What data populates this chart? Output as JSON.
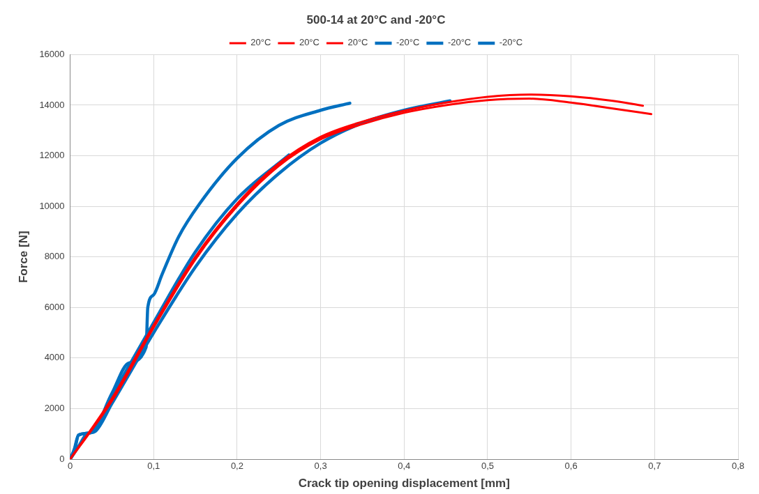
{
  "chart_data": {
    "type": "line",
    "title": "500-14 at 20°C and -20°C",
    "xlabel": "Crack tip opening displacement [mm]",
    "ylabel": "Force [N]",
    "xlim": [
      0,
      0.8
    ],
    "xticks": [
      0,
      {
        "value": 0.1,
        "label": "0,1"
      },
      {
        "value": 0.2,
        "label": "0,2"
      },
      {
        "value": 0.3,
        "label": "0,3"
      },
      {
        "value": 0.4,
        "label": "0,4"
      },
      {
        "value": 0.5,
        "label": "0,5"
      },
      {
        "value": 0.6,
        "label": "0,6"
      },
      {
        "value": 0.7,
        "label": "0,7"
      },
      {
        "value": 0.8,
        "label": "0,8"
      }
    ],
    "ylim": [
      0,
      16000
    ],
    "yticks": [
      0,
      2000,
      4000,
      6000,
      8000,
      10000,
      12000,
      14000,
      16000
    ],
    "grid": true,
    "legend": "top",
    "marker": "none",
    "line_style": "solid",
    "series": [
      {
        "name": "20°C",
        "color": "#ff0000",
        "x": [
          0,
          0.05,
          0.1,
          0.15,
          0.2,
          0.25,
          0.3,
          0.35,
          0.4,
          0.45,
          0.5,
          0.55,
          0.6,
          0.65,
          0.686
        ],
        "values": [
          0,
          2400,
          5300,
          8000,
          10100,
          11700,
          12750,
          13350,
          13780,
          14100,
          14330,
          14420,
          14350,
          14170,
          13980
        ]
      },
      {
        "name": "20°C",
        "color": "#ff0000",
        "x": [
          0,
          0.05,
          0.1,
          0.15,
          0.2,
          0.25,
          0.3,
          0.35,
          0.4,
          0.45,
          0.5,
          0.55,
          0.6,
          0.65,
          0.696
        ],
        "values": [
          0,
          2300,
          5200,
          7900,
          10000,
          11600,
          12650,
          13250,
          13700,
          14000,
          14200,
          14260,
          14100,
          13870,
          13650
        ]
      },
      {
        "name": "20°C",
        "color": "#ff0000",
        "x": [
          0,
          0.05,
          0.1,
          0.15,
          0.2,
          0.25,
          0.3,
          0.34
        ],
        "values": [
          0,
          2350,
          5250,
          7950,
          10050,
          11650,
          12700,
          13200
        ]
      },
      {
        "name": "-20°C",
        "color": "#0070c0",
        "x": [
          0,
          0.005,
          0.01,
          0.025,
          0.05,
          0.07,
          0.091,
          0.093,
          0.1,
          0.11,
          0.13,
          0.155,
          0.2,
          0.25,
          0.3,
          0.335
        ],
        "values": [
          0,
          300,
          950,
          1050,
          2600,
          3800,
          4430,
          6000,
          6500,
          7300,
          8800,
          10100,
          11900,
          13200,
          13800,
          14080
        ]
      },
      {
        "name": "-20°C",
        "color": "#0070c0",
        "x": [
          0,
          0.005,
          0.01,
          0.025,
          0.05,
          0.1,
          0.15,
          0.2,
          0.262
        ],
        "values": [
          0,
          400,
          950,
          1050,
          2500,
          5400,
          8200,
          10300,
          12030
        ]
      },
      {
        "name": "-20°C",
        "color": "#0070c0",
        "x": [
          0,
          0.01,
          0.02,
          0.03,
          0.05,
          0.1,
          0.15,
          0.2,
          0.25,
          0.3,
          0.35,
          0.4,
          0.455
        ],
        "values": [
          0,
          500,
          1000,
          1100,
          2200,
          5000,
          7600,
          9700,
          11300,
          12500,
          13300,
          13800,
          14170
        ]
      }
    ]
  }
}
